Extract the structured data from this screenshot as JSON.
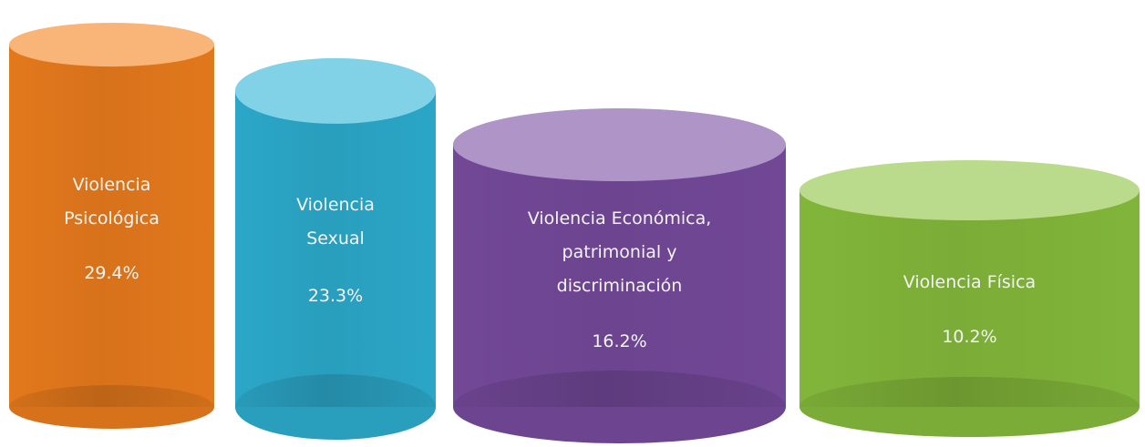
{
  "chart_data": {
    "type": "cylinder",
    "categories": [
      "Violencia Psicológica",
      "Violencia Sexual",
      "Violencia Económica, patrimonial y discriminación",
      "Violencia Física"
    ],
    "values": [
      29.4,
      23.3,
      16.2,
      10.2
    ],
    "value_labels": [
      "29.4%",
      "23.3%",
      "16.2%",
      "10.2%"
    ],
    "colors": [
      "#f5821f",
      "#2fb4d8",
      "#7b4ea3",
      "#8cc43f"
    ]
  }
}
